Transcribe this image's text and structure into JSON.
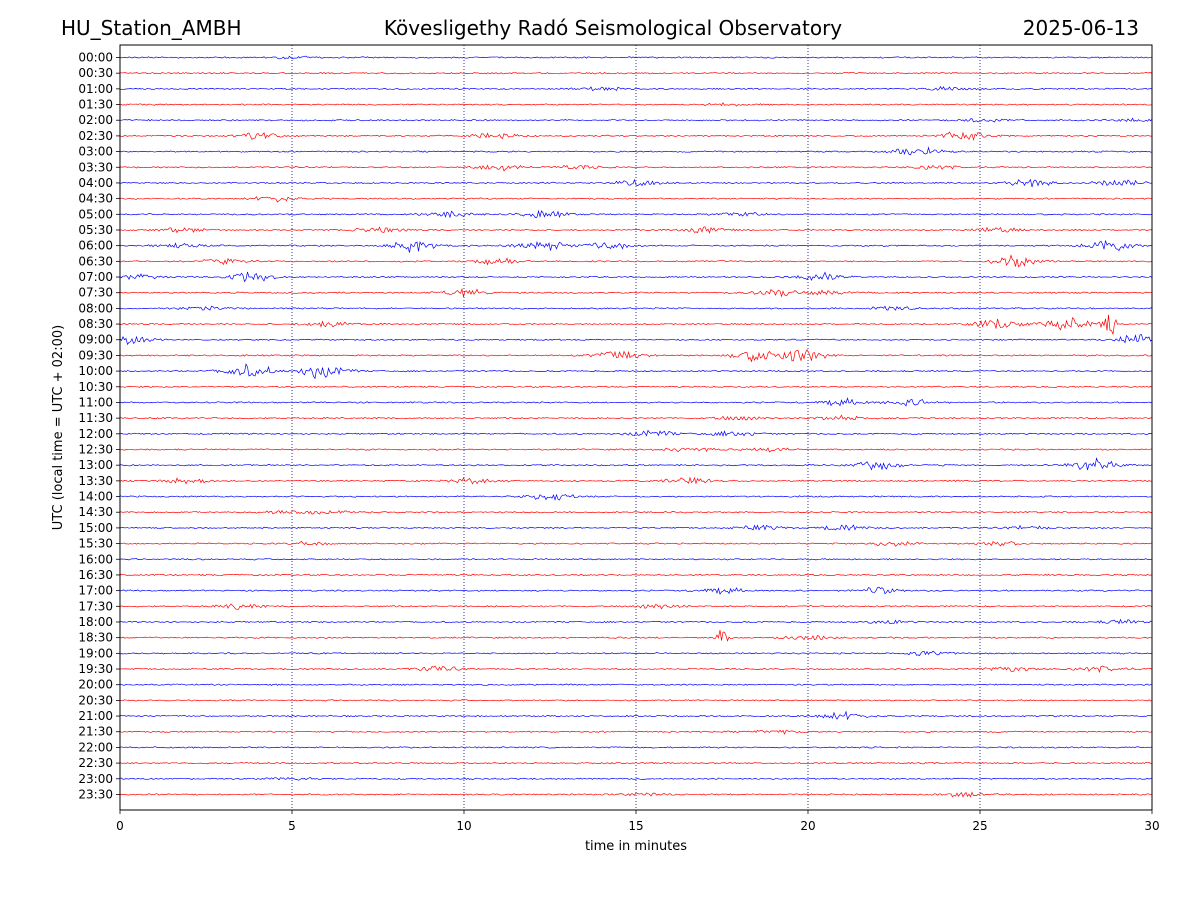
{
  "header": {
    "station": "HU_Station_AMBH",
    "observatory": "Kövesligethy Radó Seismological Observatory",
    "date": "2025-06-13"
  },
  "chart_data": {
    "type": "line",
    "xlabel": "time in minutes",
    "ylabel": "UTC (local time = UTC + 02:00)",
    "xlim": [
      0,
      30
    ],
    "x_ticks": [
      "0",
      "5",
      "10",
      "15",
      "20",
      "25",
      "30"
    ],
    "grid": "vertical dotted lines at x = 5, 10, 15, 20, 25",
    "colors": {
      "even_rows": "#0000ff",
      "odd_rows": "#ff0000",
      "grid": "#000080"
    },
    "rows": [
      {
        "label": "00:00",
        "events": [
          [
            5,
            0.3
          ]
        ]
      },
      {
        "label": "00:30",
        "events": []
      },
      {
        "label": "01:00",
        "events": [
          [
            14,
            0.5
          ],
          [
            24,
            0.4
          ]
        ]
      },
      {
        "label": "01:30",
        "events": [
          [
            17.5,
            0.3
          ]
        ]
      },
      {
        "label": "02:00",
        "events": [
          [
            25,
            0.5
          ],
          [
            29.5,
            0.3
          ]
        ]
      },
      {
        "label": "02:30",
        "events": [
          [
            4,
            0.8
          ],
          [
            11,
            0.7
          ],
          [
            24.5,
            1.2
          ]
        ]
      },
      {
        "label": "03:00",
        "events": [
          [
            23.2,
            1.2
          ]
        ]
      },
      {
        "label": "03:30",
        "events": [
          [
            11,
            0.8
          ],
          [
            13.3,
            0.5
          ],
          [
            23.7,
            0.5
          ]
        ]
      },
      {
        "label": "04:00",
        "events": [
          [
            15,
            0.8
          ],
          [
            26.5,
            0.9
          ],
          [
            29,
            0.8
          ]
        ]
      },
      {
        "label": "04:30",
        "events": [
          [
            4.5,
            0.7
          ]
        ]
      },
      {
        "label": "05:00",
        "events": [
          [
            9.5,
            0.8
          ],
          [
            12.3,
            0.8
          ],
          [
            18,
            0.6
          ]
        ]
      },
      {
        "label": "05:30",
        "events": [
          [
            1.8,
            0.6
          ],
          [
            7.5,
            0.8
          ],
          [
            17,
            0.7
          ],
          [
            25.5,
            0.6
          ]
        ]
      },
      {
        "label": "06:00",
        "events": [
          [
            1.8,
            0.7
          ],
          [
            8.5,
            1.4
          ],
          [
            12.3,
            1.4
          ],
          [
            14.2,
            0.9
          ],
          [
            28.8,
            1.3
          ]
        ]
      },
      {
        "label": "06:30",
        "events": [
          [
            3,
            0.7
          ],
          [
            11,
            0.7
          ],
          [
            26.1,
            1.3
          ]
        ]
      },
      {
        "label": "07:00",
        "events": [
          [
            0.5,
            0.8
          ],
          [
            3.8,
            1.0
          ],
          [
            20.5,
            0.9
          ]
        ]
      },
      {
        "label": "07:30",
        "events": [
          [
            10,
            1.0
          ],
          [
            19,
            0.8
          ],
          [
            20.5,
            0.6
          ]
        ]
      },
      {
        "label": "08:00",
        "events": [
          [
            2.5,
            0.6
          ],
          [
            22.5,
            0.5
          ]
        ]
      },
      {
        "label": "08:30",
        "events": [
          [
            6,
            0.8
          ],
          [
            25.5,
            1.5
          ],
          [
            27.5,
            1.4
          ],
          [
            28.75,
            3.5
          ]
        ]
      },
      {
        "label": "09:00",
        "events": [
          [
            0.2,
            1.0
          ],
          [
            29.6,
            1.2
          ]
        ]
      },
      {
        "label": "09:30",
        "events": [
          [
            14.5,
            1.4
          ],
          [
            18.5,
            1.3
          ],
          [
            19.8,
            1.5
          ]
        ]
      },
      {
        "label": "10:00",
        "events": [
          [
            3.7,
            2.0
          ],
          [
            5.9,
            1.8
          ]
        ]
      },
      {
        "label": "10:30",
        "events": []
      },
      {
        "label": "11:00",
        "events": [
          [
            21,
            0.9
          ],
          [
            23,
            0.8
          ]
        ]
      },
      {
        "label": "11:30",
        "events": [
          [
            18,
            0.5
          ],
          [
            21,
            0.6
          ]
        ]
      },
      {
        "label": "12:00",
        "events": [
          [
            15.5,
            0.8
          ],
          [
            17.9,
            0.7
          ]
        ]
      },
      {
        "label": "12:30",
        "events": [
          [
            16.5,
            0.6
          ],
          [
            19,
            0.5
          ]
        ]
      },
      {
        "label": "13:00",
        "events": [
          [
            22,
            1.0
          ],
          [
            28.3,
            1.5
          ]
        ]
      },
      {
        "label": "13:30",
        "events": [
          [
            1.9,
            0.6
          ],
          [
            10.3,
            0.9
          ],
          [
            16.5,
            0.7
          ]
        ]
      },
      {
        "label": "14:00",
        "events": [
          [
            12.5,
            0.9
          ]
        ]
      },
      {
        "label": "14:30",
        "events": [
          [
            4.5,
            0.4
          ],
          [
            6,
            0.5
          ]
        ]
      },
      {
        "label": "15:00",
        "events": [
          [
            18.5,
            0.7
          ],
          [
            21,
            0.7
          ],
          [
            26.5,
            0.5
          ]
        ]
      },
      {
        "label": "15:30",
        "events": [
          [
            5.5,
            0.4
          ],
          [
            22.5,
            0.6
          ],
          [
            25.5,
            0.5
          ]
        ]
      },
      {
        "label": "16:00",
        "events": []
      },
      {
        "label": "16:30",
        "events": []
      },
      {
        "label": "17:00",
        "events": [
          [
            17.5,
            0.8
          ],
          [
            22,
            0.8
          ]
        ]
      },
      {
        "label": "17:30",
        "events": [
          [
            3.5,
            0.6
          ],
          [
            15.7,
            0.6
          ]
        ]
      },
      {
        "label": "18:00",
        "events": [
          [
            22.3,
            0.5
          ],
          [
            29.1,
            0.5
          ]
        ]
      },
      {
        "label": "18:30",
        "events": [
          [
            17.5,
            2.2
          ],
          [
            20,
            0.6
          ]
        ]
      },
      {
        "label": "19:00",
        "events": [
          [
            23.5,
            0.5
          ]
        ]
      },
      {
        "label": "19:30",
        "events": [
          [
            9.2,
            0.7
          ],
          [
            25.8,
            0.6
          ],
          [
            28.5,
            0.7
          ]
        ]
      },
      {
        "label": "20:00",
        "events": []
      },
      {
        "label": "20:30",
        "events": []
      },
      {
        "label": "21:00",
        "events": [
          [
            21,
            1.0
          ]
        ]
      },
      {
        "label": "21:30",
        "events": [
          [
            19,
            0.4
          ]
        ]
      },
      {
        "label": "22:00",
        "events": []
      },
      {
        "label": "22:30",
        "events": []
      },
      {
        "label": "23:00",
        "events": [
          [
            5,
            0.3
          ]
        ]
      },
      {
        "label": "23:30",
        "events": [
          [
            15.3,
            0.3
          ],
          [
            24.5,
            0.5
          ]
        ]
      }
    ]
  }
}
